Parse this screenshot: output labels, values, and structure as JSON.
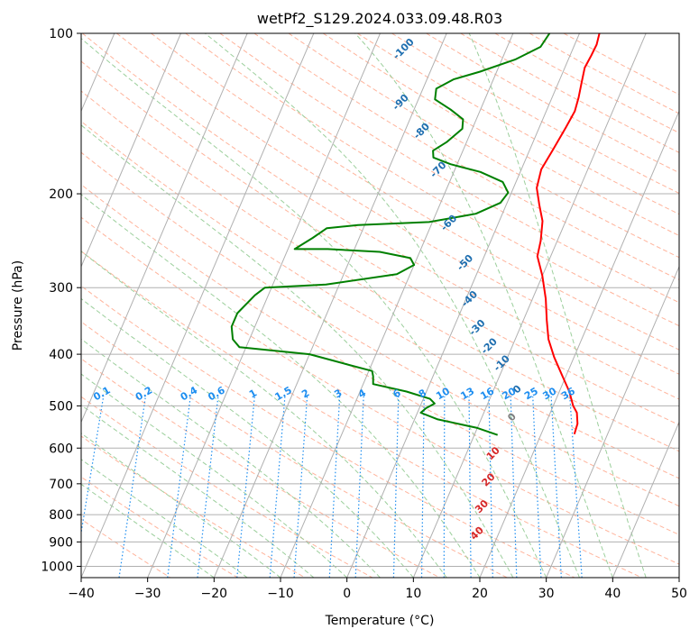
{
  "chart_data": {
    "type": "line",
    "title": "wetPf2_S129.2024.033.09.48.R03",
    "xlabel": "Temperature (°C)",
    "ylabel": "Pressure (hPa)",
    "xlim": [
      -40,
      50
    ],
    "ylim": [
      1050,
      100
    ],
    "y_scale": "log",
    "grid": true,
    "x_ticks": [
      -40,
      -30,
      -20,
      -10,
      0,
      10,
      20,
      30,
      40,
      50
    ],
    "y_ticks": [
      100,
      200,
      300,
      400,
      500,
      600,
      700,
      800,
      900,
      1000
    ],
    "x_tick_labels": [
      "−40",
      "−30",
      "−20",
      "−10",
      "0",
      "10",
      "20",
      "30",
      "40",
      "50"
    ],
    "y_tick_labels": [
      "100",
      "200",
      "300",
      "400",
      "500",
      "600",
      "700",
      "800",
      "900",
      "1000"
    ],
    "series": [
      {
        "color": "#ff0000",
        "points": [
          [
            25.0,
            565
          ],
          [
            24.8,
            540
          ],
          [
            24.0,
            515
          ],
          [
            23.0,
            500
          ],
          [
            21.5,
            470
          ],
          [
            19.5,
            440
          ],
          [
            17.0,
            405
          ],
          [
            15.0,
            375
          ],
          [
            13.5,
            345
          ],
          [
            12.0,
            315
          ],
          [
            10.0,
            285
          ],
          [
            8.0,
            262
          ],
          [
            7.5,
            245
          ],
          [
            6.5,
            225
          ],
          [
            5.0,
            210
          ],
          [
            3.5,
            195
          ],
          [
            3.0,
            180
          ],
          [
            3.5,
            165
          ],
          [
            4.0,
            150
          ],
          [
            4.3,
            140
          ],
          [
            4.0,
            132
          ],
          [
            3.5,
            124
          ],
          [
            3.0,
            116
          ],
          [
            3.2,
            110
          ],
          [
            3.3,
            105
          ],
          [
            3.0,
            100
          ]
        ]
      },
      {
        "color": "#008000",
        "points": [
          [
            13.5,
            567
          ],
          [
            10.0,
            550
          ],
          [
            3.5,
            530
          ],
          [
            0.5,
            515
          ],
          [
            1.0,
            505
          ],
          [
            2.0,
            495
          ],
          [
            1.0,
            485
          ],
          [
            -3.0,
            470
          ],
          [
            -8.5,
            455
          ],
          [
            -9.0,
            440
          ],
          [
            -9.5,
            430
          ],
          [
            -13.0,
            420
          ],
          [
            -20.0,
            400
          ],
          [
            -31.0,
            388
          ],
          [
            -32.5,
            375
          ],
          [
            -33.5,
            355
          ],
          [
            -33.5,
            335
          ],
          [
            -32.0,
            310
          ],
          [
            -31.0,
            300
          ],
          [
            -22.0,
            296
          ],
          [
            -12.0,
            283
          ],
          [
            -10.0,
            272
          ],
          [
            -11.0,
            264
          ],
          [
            -16.0,
            257
          ],
          [
            -24.0,
            254
          ],
          [
            -29.0,
            254
          ],
          [
            -27.0,
            242
          ],
          [
            -25.5,
            232
          ],
          [
            -21.0,
            229
          ],
          [
            -10.5,
            226
          ],
          [
            -4.0,
            218
          ],
          [
            -1.0,
            208
          ],
          [
            -0.5,
            199
          ],
          [
            -2.0,
            190
          ],
          [
            -6.0,
            182
          ],
          [
            -11.0,
            176
          ],
          [
            -14.0,
            171
          ],
          [
            -14.5,
            166
          ],
          [
            -13.0,
            160
          ],
          [
            -11.5,
            151
          ],
          [
            -12.0,
            145
          ],
          [
            -14.5,
            139
          ],
          [
            -17.5,
            133
          ],
          [
            -18.0,
            127
          ],
          [
            -16.0,
            122
          ],
          [
            -12.5,
            118
          ],
          [
            -8.0,
            112
          ],
          [
            -5.0,
            106
          ],
          [
            -4.5,
            100
          ]
        ]
      }
    ],
    "dry_adiabat_labels": [
      "-100",
      "-90",
      "-80",
      "-70",
      "-60",
      "-50",
      "-40",
      "-30",
      "-20",
      "-10",
      "0",
      "10",
      "20",
      "30",
      "40"
    ],
    "mixing_ratio_labels": [
      "0.1",
      "0.2",
      "0.4",
      "0.6",
      "1",
      "1.5",
      "2",
      "3",
      "4",
      "6",
      "8",
      "10",
      "13",
      "16",
      "20",
      "25",
      "30",
      "36"
    ],
    "colors": {
      "isotherm": "#b0b0b0",
      "dry_adiabat": "#ffb49c",
      "moist_adiabat": "#9ccf9c",
      "mixing_ratio": "#1e8ef0",
      "dry_label": "#1f6fb0",
      "moist_label": "#d62728"
    }
  }
}
